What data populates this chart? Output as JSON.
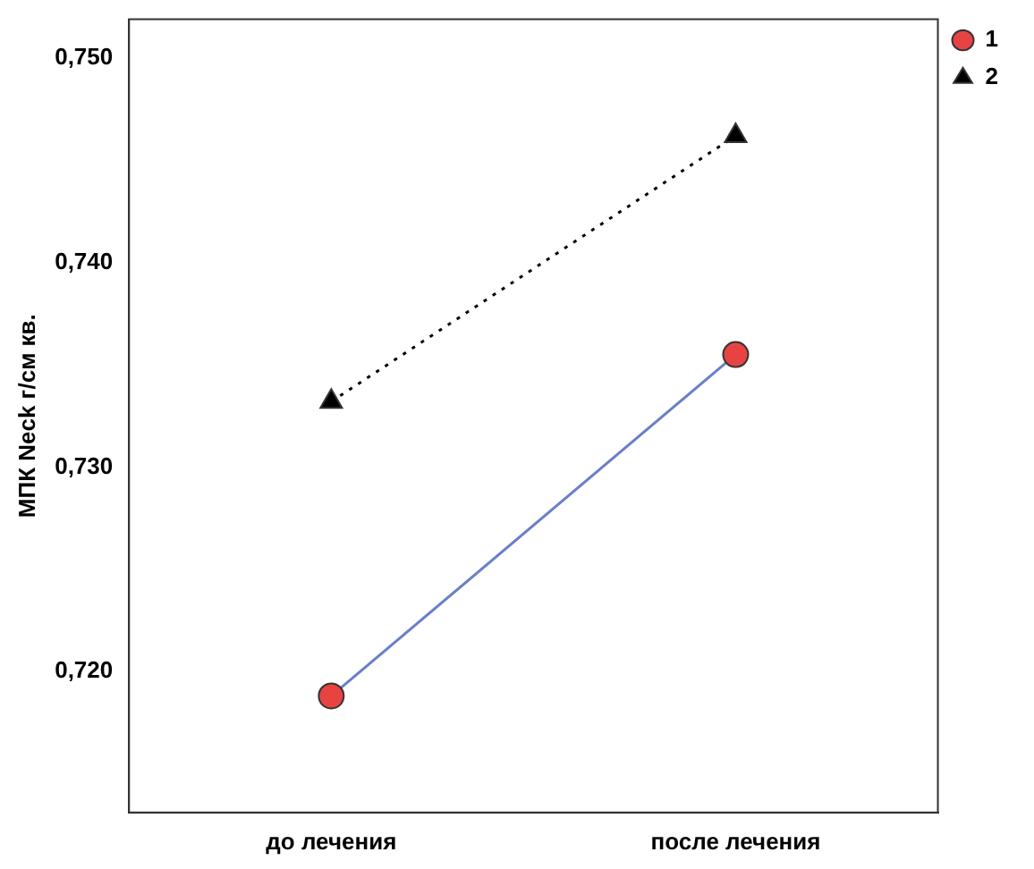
{
  "chart_data": {
    "type": "line",
    "ylabel": "МПК Neck г/см кв.",
    "categories": [
      "до лечения",
      "после лечения"
    ],
    "series": [
      {
        "name": "1",
        "color": "#6a7fc9",
        "colors": [
          "#e84343",
          "#e84343"
        ],
        "marker": "circle",
        "line_style": "solid",
        "values": [
          0.7188,
          0.7355
        ]
      },
      {
        "name": "2",
        "color": "#000000",
        "colors": [
          "#000000",
          "#000000"
        ],
        "marker": "triangle",
        "line_style": "dotted",
        "values": [
          0.7332,
          0.7462
        ]
      }
    ],
    "ylim": [
      0.7131,
      0.7519
    ],
    "yticks": [
      {
        "value": 0.72,
        "label": "0,720"
      },
      {
        "value": 0.73,
        "label": "0,730"
      },
      {
        "value": 0.74,
        "label": "0,740"
      },
      {
        "value": 0.75,
        "label": "0,750"
      }
    ],
    "grid": false,
    "legend": "top right"
  }
}
